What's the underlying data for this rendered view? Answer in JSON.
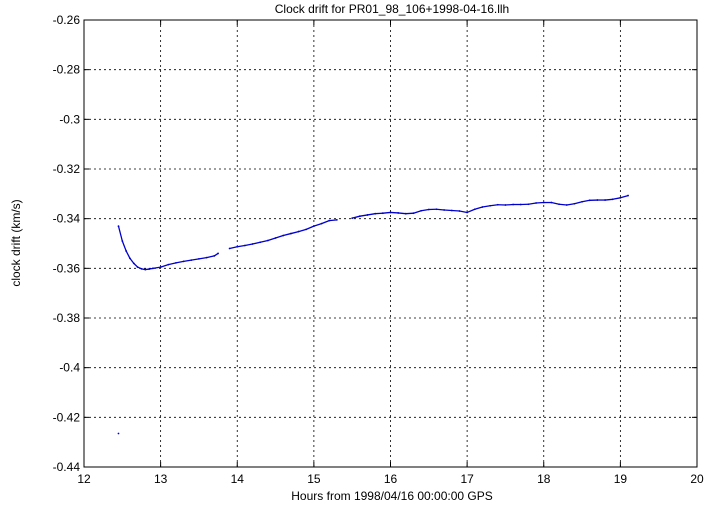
{
  "chart_data": {
    "type": "scatter",
    "title": "Clock drift for PR01_98_106+1998-04-16.llh",
    "xlabel": "Hours from 1998/04/16 00:00:00 GPS",
    "ylabel": "clock drift (km/s)",
    "xlim": [
      12,
      20
    ],
    "ylim": [
      -0.44,
      -0.26
    ],
    "xticks": [
      12,
      13,
      14,
      15,
      16,
      17,
      18,
      19,
      20
    ],
    "xtick_labels": [
      "12",
      "13",
      "14",
      "15",
      "16",
      "17",
      "18",
      "19",
      "20"
    ],
    "yticks": [
      -0.44,
      -0.42,
      -0.4,
      -0.38,
      -0.36,
      -0.34,
      -0.32,
      -0.3,
      -0.28,
      -0.26
    ],
    "ytick_labels": [
      "-0.44",
      "-0.42",
      "-0.4",
      "-0.38",
      "-0.36",
      "-0.34",
      "-0.32",
      "-0.3",
      "-0.28",
      "-0.26"
    ],
    "grid": true,
    "series_color": "#0000cc",
    "series": [
      {
        "x": [
          12.45,
          12.5,
          12.55,
          12.6,
          12.65,
          12.7,
          12.75,
          12.8,
          12.85,
          12.9,
          13.0,
          13.1,
          13.2,
          13.3,
          13.4,
          13.5,
          13.6,
          13.7,
          13.75,
          13.9,
          14.0,
          14.1,
          14.2,
          14.3,
          14.4,
          14.5,
          14.6,
          14.7,
          14.8,
          14.9,
          15.0,
          15.1,
          15.2,
          15.3,
          15.5,
          15.6,
          15.7,
          15.8,
          15.9,
          16.0,
          16.1,
          16.2,
          16.3,
          16.4,
          16.5,
          16.6,
          16.7,
          16.8,
          16.9,
          17.0,
          17.1,
          17.2,
          17.3,
          17.4,
          17.5,
          17.6,
          17.7,
          17.8,
          17.9,
          18.0,
          18.1,
          18.2,
          18.3,
          18.4,
          18.5,
          18.6,
          18.7,
          18.8,
          18.9,
          19.0,
          19.1
        ],
        "y": [
          -0.343,
          -0.349,
          -0.353,
          -0.356,
          -0.358,
          -0.3595,
          -0.3602,
          -0.3605,
          -0.3603,
          -0.36,
          -0.3595,
          -0.3585,
          -0.3578,
          -0.3572,
          -0.3567,
          -0.3562,
          -0.3557,
          -0.355,
          -0.354,
          -0.352,
          -0.3513,
          -0.3508,
          -0.3502,
          -0.3495,
          -0.3488,
          -0.3478,
          -0.3468,
          -0.346,
          -0.3452,
          -0.3443,
          -0.343,
          -0.342,
          -0.3408,
          -0.3405,
          -0.3398,
          -0.339,
          -0.3385,
          -0.338,
          -0.3378,
          -0.3375,
          -0.3377,
          -0.338,
          -0.3378,
          -0.3368,
          -0.3363,
          -0.3362,
          -0.3365,
          -0.3367,
          -0.3369,
          -0.3375,
          -0.3362,
          -0.3353,
          -0.3348,
          -0.3344,
          -0.3345,
          -0.3343,
          -0.3343,
          -0.3342,
          -0.3337,
          -0.3335,
          -0.3335,
          -0.3342,
          -0.3345,
          -0.334,
          -0.3332,
          -0.3326,
          -0.3325,
          -0.3325,
          -0.3322,
          -0.3316,
          -0.3307
        ]
      },
      {
        "x": [
          12.45
        ],
        "y": [
          -0.4265
        ]
      }
    ]
  }
}
